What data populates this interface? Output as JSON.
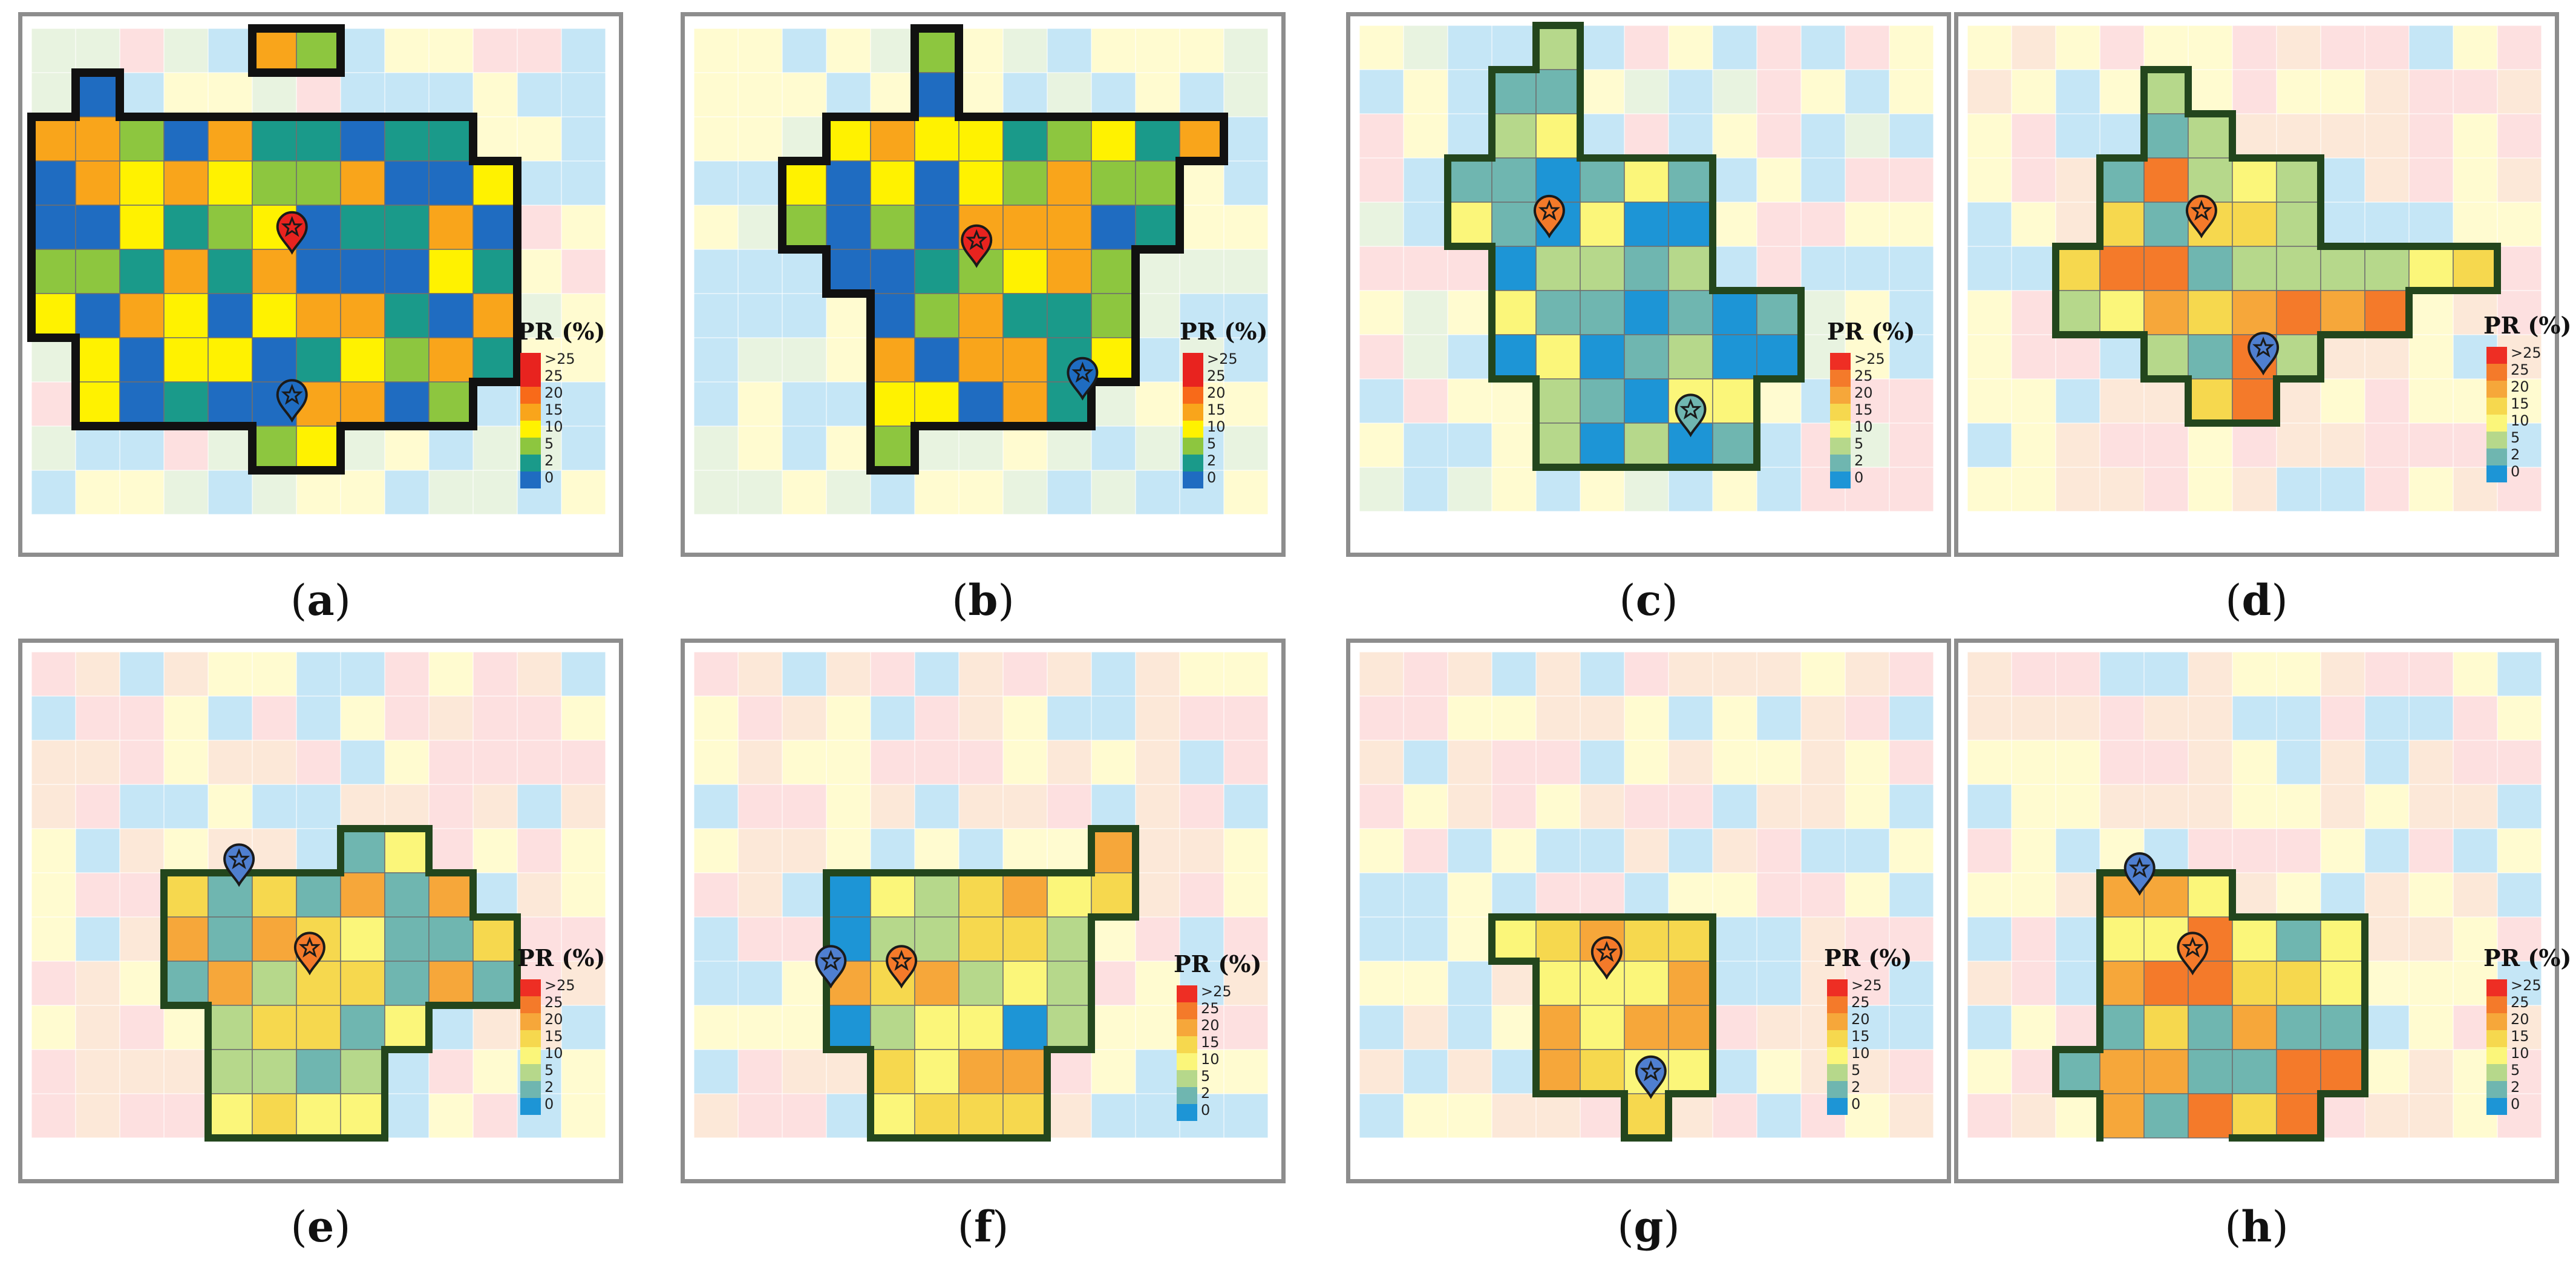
{
  "figure": {
    "panels": [
      {
        "caption_open": "(",
        "caption_letter": "a",
        "caption_close": ")",
        "legend_title": "PR (%)",
        "boundary_color": "#111111",
        "legend_colors": [
          "#e8231f",
          "#e8231f",
          "#f86a19",
          "#f9a51b",
          "#fff200",
          "#8dc63f",
          "#1a9a8a",
          "#1f6cc1"
        ],
        "legend_ticks": [
          ">25",
          "25",
          "20",
          "15",
          "10",
          "5",
          "2",
          "0"
        ]
      },
      {
        "caption_open": "(",
        "caption_letter": "b",
        "caption_close": ")",
        "legend_title": "PR (%)",
        "boundary_color": "#111111",
        "legend_colors": [
          "#e8231f",
          "#e8231f",
          "#f86a19",
          "#f9a51b",
          "#fff200",
          "#8dc63f",
          "#1a9a8a",
          "#1f6cc1"
        ],
        "legend_ticks": [
          ">25",
          "25",
          "20",
          "15",
          "10",
          "5",
          "2",
          "0"
        ]
      },
      {
        "caption_open": "(",
        "caption_letter": "c",
        "caption_close": ")",
        "legend_title": "PR (%)",
        "boundary_color": "#23461d",
        "legend_colors": [
          "#ee2e24",
          "#f47a2a",
          "#f6a73a",
          "#f6d84e",
          "#fbf67a",
          "#b6d88b",
          "#6fb6b0",
          "#1d95d6"
        ],
        "legend_ticks": [
          ">25",
          "25",
          "20",
          "15",
          "10",
          "5",
          "2",
          "0"
        ]
      },
      {
        "caption_open": "(",
        "caption_letter": "d",
        "caption_close": ")",
        "legend_title": "PR (%)",
        "boundary_color": "#23461d",
        "legend_colors": [
          "#ee2e24",
          "#f47a2a",
          "#f6a73a",
          "#f6d84e",
          "#fbf67a",
          "#b6d88b",
          "#6fb6b0",
          "#1d95d6"
        ],
        "legend_ticks": [
          ">25",
          "25",
          "20",
          "15",
          "10",
          "5",
          "2",
          "0"
        ]
      },
      {
        "caption_open": "(",
        "caption_letter": "e",
        "caption_close": ")",
        "legend_title": "PR (%)",
        "boundary_color": "#23461d",
        "legend_colors": [
          "#ee2e24",
          "#f47a2a",
          "#f6a73a",
          "#f6d84e",
          "#fbf67a",
          "#b6d88b",
          "#6fb6b0",
          "#1d95d6"
        ],
        "legend_ticks": [
          ">25",
          "25",
          "20",
          "15",
          "10",
          "5",
          "2",
          "0"
        ]
      },
      {
        "caption_open": "(",
        "caption_letter": "f",
        "caption_close": ")",
        "legend_title": "PR (%)",
        "boundary_color": "#23461d",
        "legend_colors": [
          "#ee2e24",
          "#f47a2a",
          "#f6a73a",
          "#f6d84e",
          "#fbf67a",
          "#b6d88b",
          "#6fb6b0",
          "#1d95d6"
        ],
        "legend_ticks": [
          ">25",
          "25",
          "20",
          "15",
          "10",
          "5",
          "2",
          "0"
        ]
      },
      {
        "caption_open": "(",
        "caption_letter": "g",
        "caption_close": ")",
        "legend_title": "PR (%)",
        "boundary_color": "#23461d",
        "legend_colors": [
          "#ee2e24",
          "#f47a2a",
          "#f6a73a",
          "#f6d84e",
          "#fbf67a",
          "#b6d88b",
          "#6fb6b0",
          "#1d95d6"
        ],
        "legend_ticks": [
          ">25",
          "25",
          "20",
          "15",
          "10",
          "5",
          "2",
          "0"
        ]
      },
      {
        "caption_open": "(",
        "caption_letter": "h",
        "caption_close": ")",
        "legend_title": "PR (%)",
        "boundary_color": "#23461d",
        "legend_colors": [
          "#ee2e24",
          "#f47a2a",
          "#f6a73a",
          "#f6d84e",
          "#fbf67a",
          "#b6d88b",
          "#6fb6b0",
          "#1d95d6"
        ],
        "legend_ticks": [
          ">25",
          "25",
          "20",
          "15",
          "10",
          "5",
          "2",
          "0"
        ]
      }
    ]
  }
}
